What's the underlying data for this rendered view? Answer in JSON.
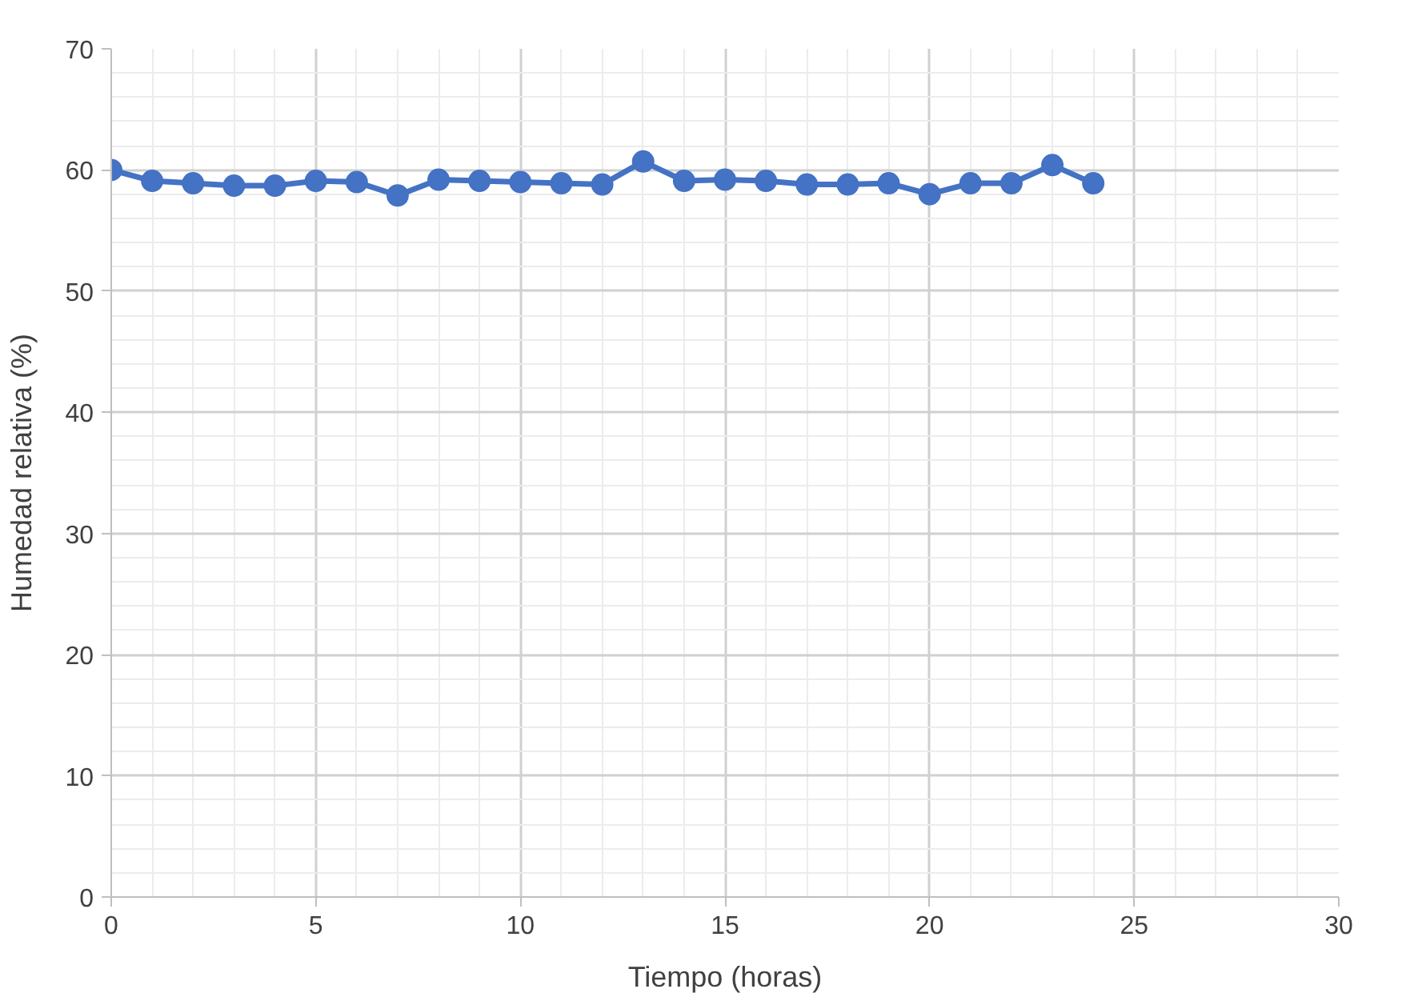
{
  "chart_data": {
    "type": "line",
    "xlabel": "Tiempo (horas)",
    "ylabel": "Humedad relativa (%)",
    "x": [
      0,
      1,
      2,
      3,
      4,
      5,
      6,
      7,
      8,
      9,
      10,
      11,
      12,
      13,
      14,
      15,
      16,
      17,
      18,
      19,
      20,
      21,
      22,
      23,
      24
    ],
    "series": [
      {
        "color": "#4472c4",
        "values": [
          60.0,
          59.1,
          58.9,
          58.7,
          58.7,
          59.1,
          59.0,
          57.9,
          59.2,
          59.1,
          59.0,
          58.9,
          58.8,
          60.7,
          59.1,
          59.2,
          59.1,
          58.8,
          58.8,
          58.9,
          58.0,
          58.9,
          58.9,
          60.4,
          58.9
        ]
      }
    ],
    "xlim": [
      0,
      30
    ],
    "ylim": [
      0,
      70
    ],
    "xticks": [
      0,
      5,
      10,
      15,
      20,
      25,
      30
    ],
    "yticks": [
      0,
      10,
      20,
      30,
      40,
      50,
      60,
      70
    ],
    "grid": true,
    "marker": "circle",
    "line_style": "solid"
  }
}
